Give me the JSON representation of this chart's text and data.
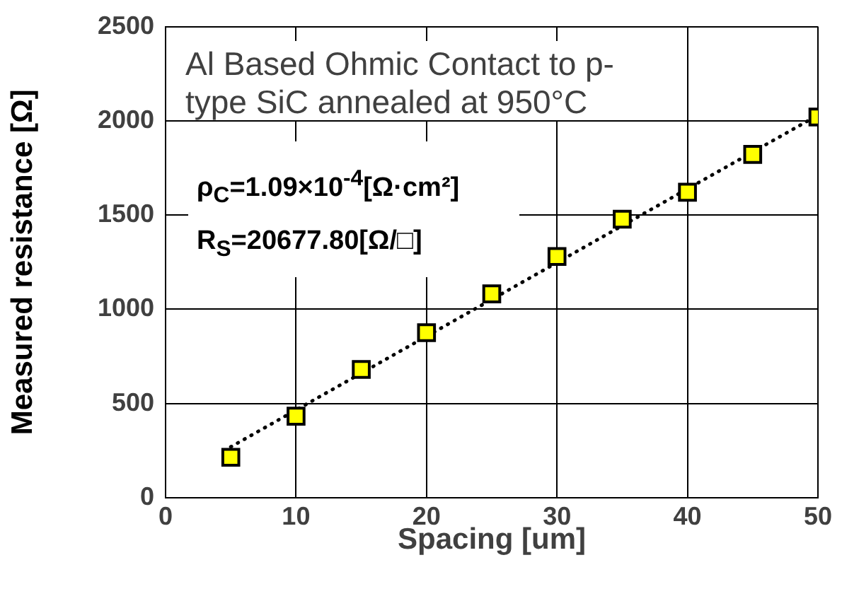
{
  "chart_data": {
    "type": "scatter",
    "xlabel": "Spacing [um]",
    "ylabel": "Measured resistance [Ω]",
    "xlim": [
      0,
      50
    ],
    "xticks": [
      0,
      10,
      20,
      30,
      40,
      50
    ],
    "ylim": [
      0,
      2500
    ],
    "yticks": [
      0,
      500,
      1000,
      1500,
      2000,
      2500
    ],
    "grid": true,
    "series": [
      {
        "x": [
          5,
          10,
          15,
          20,
          25,
          30,
          35,
          40,
          45,
          50
        ],
        "values": [
          215,
          433,
          681,
          876,
          1082,
          1280,
          1478,
          1621,
          1822,
          2020
        ],
        "color": "#ffff00",
        "marker": "square"
      },
      {
        "type": "line",
        "x": [
          5,
          50
        ],
        "values": [
          270,
          2030
        ],
        "color": "#000000",
        "line_style": "dotted",
        "marker": "none"
      }
    ],
    "annotations": [
      "Al Based Ohmic Contact to p-type SiC annealed at 950°C",
      "ρ$_{C}$=1.09×10$^{-4}$[Ω·cm²]",
      "R$_{S}$=20677.80[Ω/□]"
    ]
  }
}
